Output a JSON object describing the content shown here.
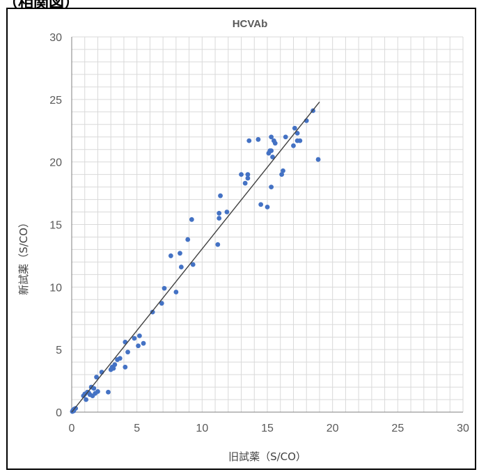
{
  "header": {
    "text": "（相関図）"
  },
  "chart_data": {
    "type": "scatter",
    "title": "HCVAb",
    "xlabel": "旧試薬（S/CO）",
    "ylabel": "新試薬（S/CO）",
    "xlim": [
      0,
      30
    ],
    "ylim": [
      0,
      30
    ],
    "x_ticks": [
      "0",
      "5",
      "10",
      "15",
      "20",
      "25",
      "30"
    ],
    "y_ticks": [
      "0",
      "5",
      "10",
      "15",
      "20",
      "25",
      "30"
    ],
    "grid": true,
    "legend": "none",
    "marker_color": "#4472C4",
    "trendline": {
      "x": [
        0,
        19
      ],
      "y": [
        0,
        24.8
      ],
      "color": "#404040"
    },
    "points": [
      [
        0.05,
        0.05
      ],
      [
        0.1,
        0.15
      ],
      [
        0.2,
        0.25
      ],
      [
        0.3,
        0.3
      ],
      [
        0.15,
        0.1
      ],
      [
        0.9,
        1.3
      ],
      [
        1.0,
        1.45
      ],
      [
        1.1,
        1.0
      ],
      [
        1.2,
        1.6
      ],
      [
        1.3,
        1.55
      ],
      [
        1.4,
        1.4
      ],
      [
        1.5,
        2.0
      ],
      [
        1.6,
        1.3
      ],
      [
        1.7,
        1.9
      ],
      [
        1.8,
        1.5
      ],
      [
        1.9,
        2.8
      ],
      [
        2.0,
        1.65
      ],
      [
        2.3,
        3.2
      ],
      [
        2.8,
        1.6
      ],
      [
        3.0,
        3.4
      ],
      [
        3.1,
        3.6
      ],
      [
        3.2,
        3.5
      ],
      [
        3.3,
        3.8
      ],
      [
        3.5,
        4.2
      ],
      [
        3.7,
        4.3
      ],
      [
        4.1,
        3.6
      ],
      [
        4.1,
        5.6
      ],
      [
        4.3,
        4.8
      ],
      [
        4.8,
        5.9
      ],
      [
        5.1,
        5.3
      ],
      [
        5.2,
        6.1
      ],
      [
        5.5,
        5.5
      ],
      [
        6.2,
        8.0
      ],
      [
        6.9,
        8.7
      ],
      [
        7.1,
        9.9
      ],
      [
        7.6,
        12.5
      ],
      [
        8.0,
        9.6
      ],
      [
        8.3,
        12.7
      ],
      [
        8.4,
        11.6
      ],
      [
        8.9,
        13.8
      ],
      [
        9.2,
        15.4
      ],
      [
        9.3,
        11.8
      ],
      [
        11.2,
        13.4
      ],
      [
        11.3,
        15.5
      ],
      [
        11.3,
        15.9
      ],
      [
        11.4,
        17.3
      ],
      [
        11.9,
        16.0
      ],
      [
        13.0,
        19.0
      ],
      [
        13.3,
        18.3
      ],
      [
        13.5,
        18.7
      ],
      [
        13.5,
        19.0
      ],
      [
        13.6,
        21.7
      ],
      [
        14.3,
        21.8
      ],
      [
        14.5,
        16.6
      ],
      [
        15.0,
        16.4
      ],
      [
        15.1,
        20.7
      ],
      [
        15.2,
        20.9
      ],
      [
        15.3,
        22.0
      ],
      [
        15.3,
        20.9
      ],
      [
        15.3,
        18.0
      ],
      [
        15.4,
        20.4
      ],
      [
        15.5,
        21.7
      ],
      [
        15.6,
        21.5
      ],
      [
        16.1,
        19.0
      ],
      [
        16.2,
        19.3
      ],
      [
        16.4,
        22.0
      ],
      [
        17.0,
        21.3
      ],
      [
        17.1,
        22.7
      ],
      [
        17.3,
        22.3
      ],
      [
        17.3,
        21.7
      ],
      [
        17.5,
        21.7
      ],
      [
        18.0,
        23.3
      ],
      [
        18.5,
        24.1
      ],
      [
        18.9,
        20.2
      ]
    ]
  }
}
